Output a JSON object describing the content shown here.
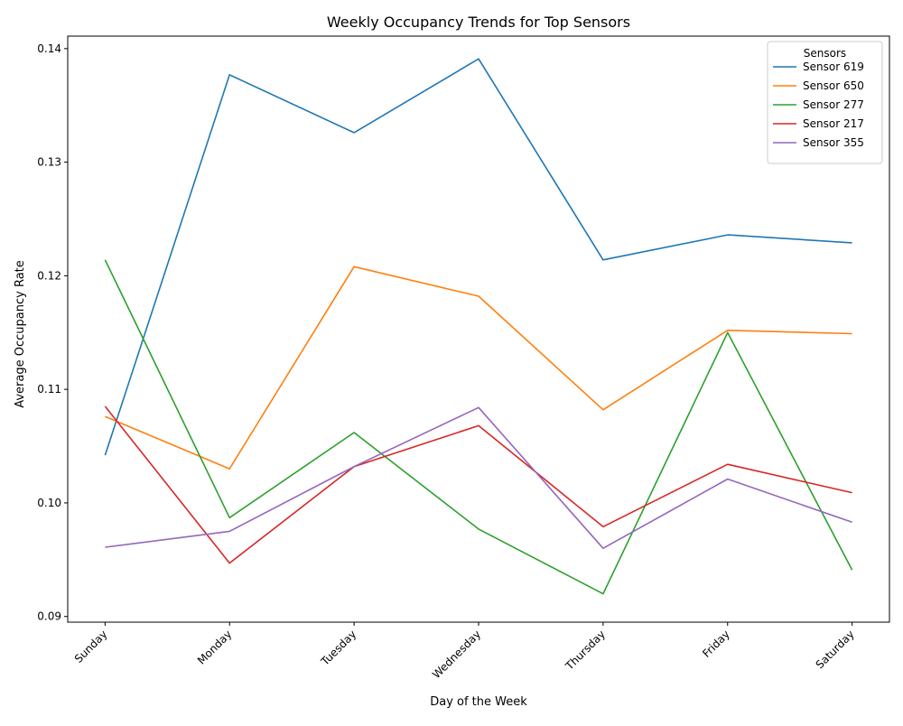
{
  "chart_data": {
    "type": "line",
    "title": "Weekly Occupancy Trends for Top Sensors",
    "xlabel": "Day of the Week",
    "ylabel": "Average Occupancy Rate",
    "categories": [
      "Sunday",
      "Monday",
      "Tuesday",
      "Wednesday",
      "Thursday",
      "Friday",
      "Saturday"
    ],
    "ylim": [
      0.0895,
      0.1411
    ],
    "yticks": [
      0.09,
      0.1,
      0.11,
      0.12,
      0.13,
      0.14
    ],
    "ytick_labels": [
      "0.09",
      "0.10",
      "0.11",
      "0.12",
      "0.13",
      "0.14"
    ],
    "grid": false,
    "legend": {
      "title": "Sensors",
      "placement": "top-right"
    },
    "series": [
      {
        "name": "Sensor 619",
        "color": "#1f77b4",
        "values": [
          0.1042,
          0.1377,
          0.1326,
          0.1391,
          0.1214,
          0.1236,
          0.1229
        ]
      },
      {
        "name": "Sensor 650",
        "color": "#ff7f0e",
        "values": [
          0.1076,
          0.103,
          0.1208,
          0.1182,
          0.1082,
          0.1152,
          0.1149
        ]
      },
      {
        "name": "Sensor 277",
        "color": "#2ca02c",
        "values": [
          0.1214,
          0.0987,
          0.1062,
          0.0977,
          0.092,
          0.115,
          0.0941
        ]
      },
      {
        "name": "Sensor 217",
        "color": "#d62728",
        "values": [
          0.1085,
          0.0947,
          0.1032,
          0.1068,
          0.0979,
          0.1034,
          0.1009
        ]
      },
      {
        "name": "Sensor 355",
        "color": "#9467bd",
        "values": [
          0.0961,
          0.0975,
          0.1032,
          0.1084,
          0.096,
          0.1021,
          0.0983
        ]
      }
    ]
  }
}
